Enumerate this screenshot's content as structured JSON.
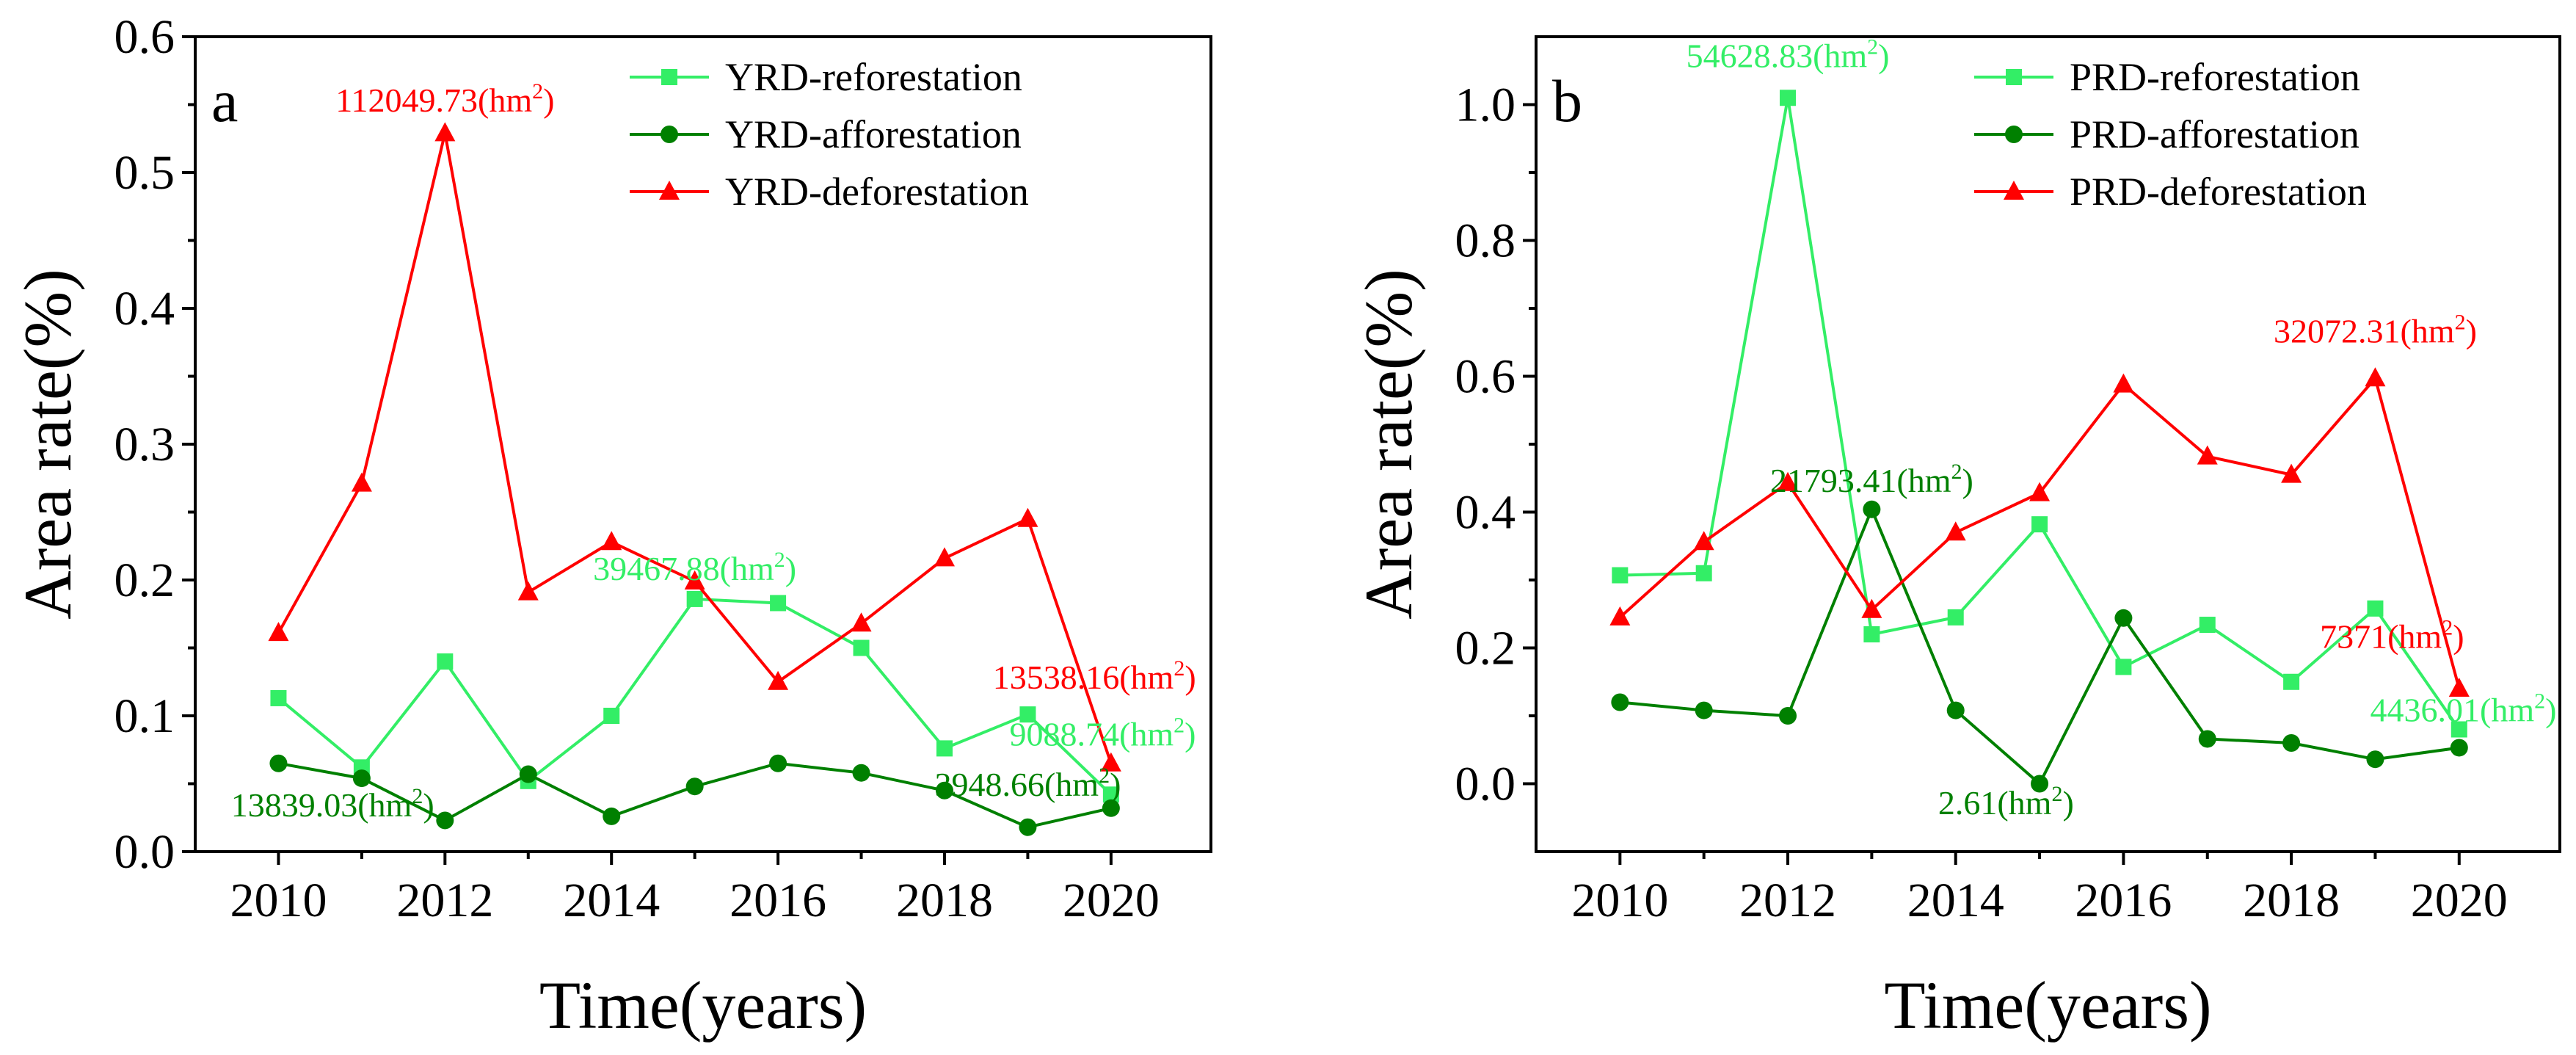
{
  "chart_data": [
    {
      "panel_label": "a",
      "type": "line",
      "xlabel": "Time(years)",
      "ylabel": "Area rate(%)",
      "xlim": [
        2009,
        2021.2
      ],
      "ylim": [
        0,
        0.6
      ],
      "x_ticks": [
        2010,
        2012,
        2014,
        2016,
        2018,
        2020
      ],
      "x_tick_labels": [
        "2010",
        "2012",
        "2014",
        "2016",
        "2018",
        "2020"
      ],
      "y_ticks": [
        0.0,
        0.1,
        0.2,
        0.3,
        0.4,
        0.5,
        0.6
      ],
      "y_tick_labels": [
        "0.0",
        "0.1",
        "0.2",
        "0.3",
        "0.4",
        "0.5",
        "0.6"
      ],
      "legend_position": "top-right",
      "x": [
        2010,
        2011,
        2012,
        2013,
        2014,
        2015,
        2016,
        2017,
        2018,
        2019,
        2020
      ],
      "series": [
        {
          "name": "YRD-reforestation",
          "color": "#33ee66",
          "marker": "square",
          "values": [
            0.113,
            0.062,
            0.14,
            0.052,
            0.1,
            0.186,
            0.183,
            0.15,
            0.076,
            0.101,
            0.042
          ]
        },
        {
          "name": "YRD-afforestation",
          "color": "#008000",
          "marker": "circle",
          "values": [
            0.065,
            0.054,
            0.023,
            0.057,
            0.026,
            0.048,
            0.065,
            0.058,
            0.045,
            0.018,
            0.032
          ]
        },
        {
          "name": "YRD-deforestation",
          "color": "#ff0000",
          "marker": "triangle",
          "values": [
            0.161,
            0.271,
            0.529,
            0.191,
            0.228,
            0.199,
            0.125,
            0.168,
            0.216,
            0.245,
            0.065
          ]
        }
      ],
      "annotations": [
        {
          "value": "112049.73",
          "unit": "(hm",
          "sup": "2",
          "close": ")",
          "color": "#ff0000",
          "x": 2012,
          "y": 0.545
        },
        {
          "value": "39467.88",
          "unit": "(hm",
          "sup": "2",
          "close": ")",
          "color": "#33ee66",
          "x": 2015,
          "y": 0.2
        },
        {
          "value": "13538.16",
          "unit": "(hm",
          "sup": "2",
          "close": ")",
          "color": "#ff0000",
          "x": 2019.8,
          "y": 0.12
        },
        {
          "value": "9088.74",
          "unit": "(hm",
          "sup": "2",
          "close": ")",
          "color": "#33ee66",
          "x": 2019.9,
          "y": 0.078
        },
        {
          "value": "13839.03",
          "unit": "(hm",
          "sup": "2",
          "close": ")",
          "color": "#008000",
          "x": 2010.65,
          "y": 0.026
        },
        {
          "value": "3948.66",
          "unit": "(hm",
          "sup": "2",
          "close": ")",
          "color": "#008000",
          "x": 2019.0,
          "y": 0.041
        }
      ]
    },
    {
      "panel_label": "b",
      "type": "line",
      "xlabel": "Time(years)",
      "ylabel": "Area rate(%)",
      "xlim": [
        2009,
        2021.2
      ],
      "ylim": [
        -0.1,
        1.1
      ],
      "x_ticks": [
        2010,
        2012,
        2014,
        2016,
        2018,
        2020
      ],
      "x_tick_labels": [
        "2010",
        "2012",
        "2014",
        "2016",
        "2018",
        "2020"
      ],
      "y_ticks": [
        0.0,
        0.2,
        0.4,
        0.6,
        0.8,
        1.0
      ],
      "y_tick_labels": [
        "0.0",
        "0.2",
        "0.4",
        "0.6",
        "0.8",
        "1.0"
      ],
      "legend_position": "top-right",
      "x": [
        2010,
        2011,
        2012,
        2013,
        2014,
        2015,
        2016,
        2017,
        2018,
        2019,
        2020
      ],
      "series": [
        {
          "name": "PRD-reforestation",
          "color": "#33ee66",
          "marker": "square",
          "values": [
            0.307,
            0.31,
            1.01,
            0.22,
            0.245,
            0.382,
            0.172,
            0.234,
            0.15,
            0.258,
            0.08
          ]
        },
        {
          "name": "PRD-afforestation",
          "color": "#008000",
          "marker": "circle",
          "values": [
            0.12,
            0.108,
            0.1,
            0.404,
            0.108,
            0.0,
            0.244,
            0.066,
            0.06,
            0.036,
            0.053
          ]
        },
        {
          "name": "PRD-deforestation",
          "color": "#ff0000",
          "marker": "triangle",
          "values": [
            0.245,
            0.356,
            0.443,
            0.256,
            0.37,
            0.428,
            0.588,
            0.482,
            0.455,
            0.597,
            0.14
          ]
        }
      ],
      "annotations": [
        {
          "value": "54628.83",
          "unit": "(hm",
          "sup": "2",
          "close": ")",
          "color": "#33ee66",
          "x": 2012,
          "y": 1.055
        },
        {
          "value": "21793.41",
          "unit": "(hm",
          "sup": "2",
          "close": ")",
          "color": "#008000",
          "x": 2013,
          "y": 0.43
        },
        {
          "value": "32072.31",
          "unit": "(hm",
          "sup": "2",
          "close": ")",
          "color": "#ff0000",
          "x": 2019,
          "y": 0.65
        },
        {
          "value": "7371",
          "unit": "(hm",
          "sup": "2",
          "close": ")",
          "color": "#ff0000",
          "x": 2019.2,
          "y": 0.2
        },
        {
          "value": "4436.01",
          "unit": "(hm",
          "sup": "2",
          "close": ")",
          "color": "#33ee66",
          "x": 2020.05,
          "y": 0.092
        },
        {
          "value": "2.61",
          "unit": "(hm",
          "sup": "2",
          "close": ")",
          "color": "#008000",
          "x": 2014.6,
          "y": -0.045
        }
      ]
    }
  ]
}
